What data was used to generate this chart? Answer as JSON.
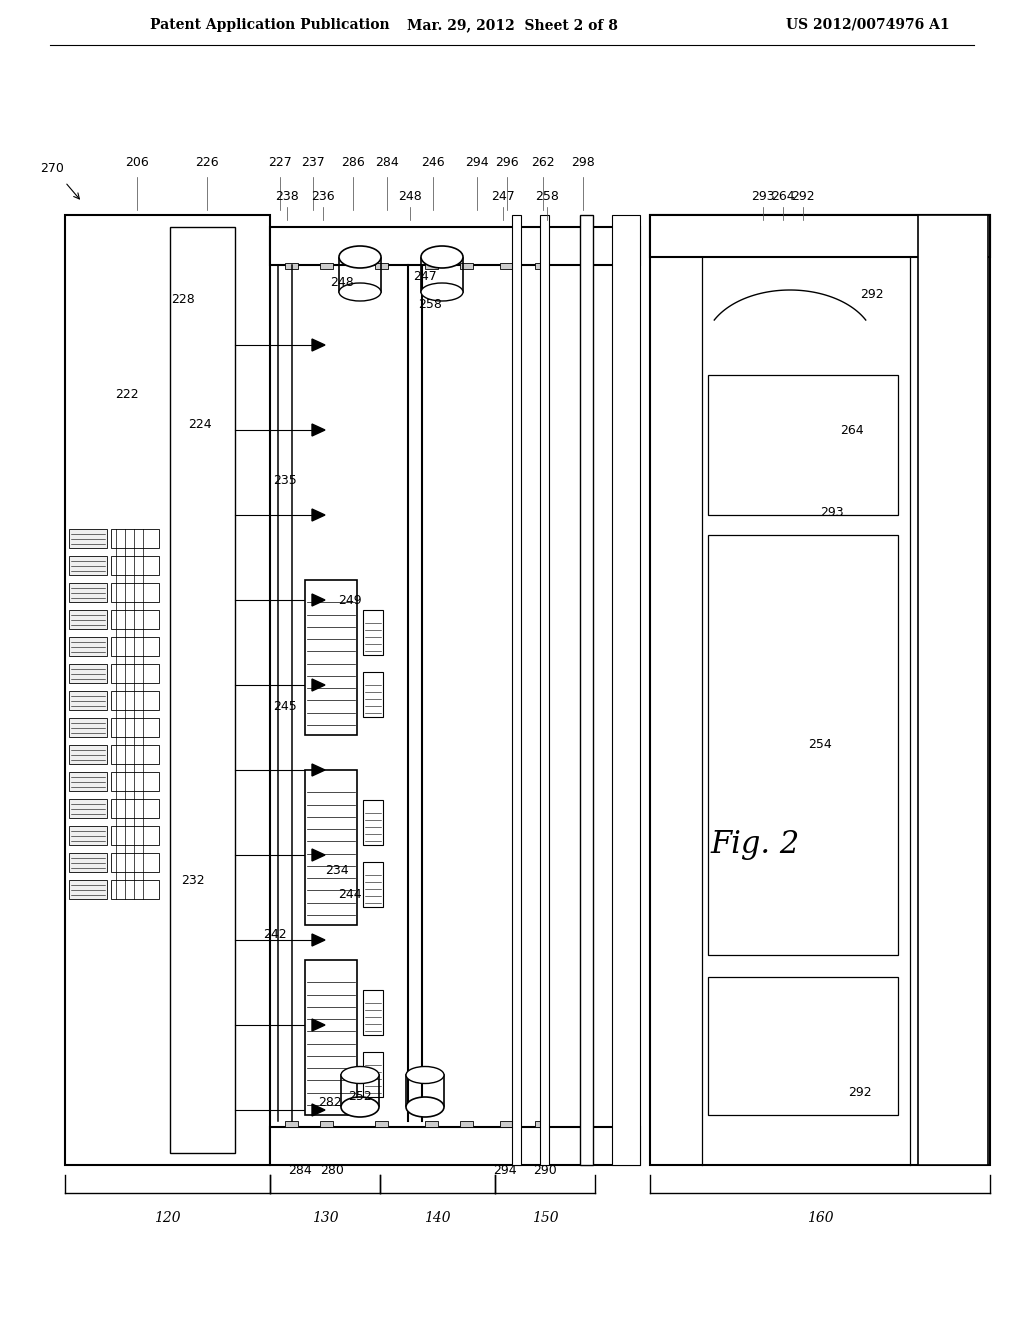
{
  "background_color": "#ffffff",
  "header_left": "Patent Application Publication",
  "header_mid": "Mar. 29, 2012  Sheet 2 of 8",
  "header_right": "US 2012/0074976 A1",
  "fig_label": "Fig. 2",
  "title_fontsize": 11,
  "label_fontsize": 9
}
